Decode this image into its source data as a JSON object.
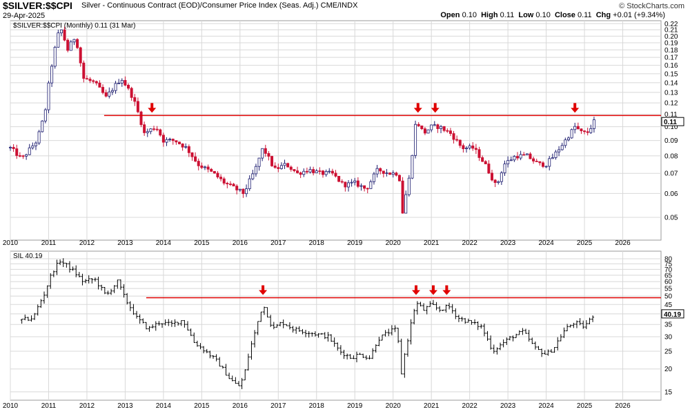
{
  "header": {
    "ticker": "$SILVER:$$CPI",
    "description": "Silver - Continuous Contract (EOD)/Consumer Price Index (Seas. Adj.) CME/INDX",
    "date": "29-Apr-2025",
    "ohlc": {
      "open_label": "Open",
      "open": "0.10",
      "high_label": "High",
      "high": "0.11",
      "low_label": "Low",
      "low": "0.10",
      "close_label": "Close",
      "close": "0.11",
      "chg_label": "Chg",
      "chg": "+0.01 (+9.34%)"
    },
    "brand": "© StockCharts.com"
  },
  "colors": {
    "up": "#1a1a6e",
    "down": "#cc1133",
    "resistance": "#e00000",
    "arrow": "#e00000",
    "grid": "#d8d8d8",
    "sil": "#000000"
  },
  "chart_data": [
    {
      "type": "candlestick",
      "panel_label": "$SILVER:$$CPI (Monthly) 0.11 (31 Mar)",
      "scale": "log",
      "ylim": [
        0.042,
        0.225
      ],
      "yticks": [
        0.05,
        0.06,
        0.07,
        0.08,
        0.09,
        0.1,
        0.11,
        0.12,
        0.13,
        0.14,
        0.15,
        0.16,
        0.17,
        0.18,
        0.19,
        0.2,
        0.21,
        0.22
      ],
      "ytick_labels": [
        "0.05",
        "0.06",
        "0.07",
        "0.08",
        "0.09",
        "0.10",
        "0.11",
        "0.12",
        "0.13",
        "0.14",
        "0.15",
        "0.16",
        "0.17",
        "0.18",
        "0.19",
        "0.20",
        "0.21",
        "0.22"
      ],
      "xlim": [
        2010.0,
        2027.0
      ],
      "xticks": [
        2010,
        2011,
        2012,
        2013,
        2014,
        2015,
        2016,
        2017,
        2018,
        2019,
        2020,
        2021,
        2022,
        2023,
        2024,
        2025,
        2026
      ],
      "xtick_labels": [
        "2010",
        "2011",
        "2012",
        "2013",
        "2014",
        "2015",
        "2016",
        "2017",
        "2018",
        "2019",
        "2020",
        "2021",
        "2022",
        "2023",
        "2024",
        "2025",
        "2026"
      ],
      "last_value_label": "0.11",
      "resistance": {
        "y": 0.109,
        "x_start": 2012.45,
        "x_end": 2027.0
      },
      "arrows": [
        2013.7,
        2020.65,
        2021.1,
        2024.75
      ],
      "anchors": [
        [
          2010.0,
          0.085
        ],
        [
          2010.3,
          0.078
        ],
        [
          2010.7,
          0.09
        ],
        [
          2010.9,
          0.11
        ],
        [
          2011.1,
          0.165
        ],
        [
          2011.3,
          0.215
        ],
        [
          2011.5,
          0.18
        ],
        [
          2011.7,
          0.2
        ],
        [
          2011.9,
          0.145
        ],
        [
          2012.2,
          0.14
        ],
        [
          2012.5,
          0.125
        ],
        [
          2012.9,
          0.145
        ],
        [
          2013.2,
          0.125
        ],
        [
          2013.5,
          0.095
        ],
        [
          2013.8,
          0.1
        ],
        [
          2014.0,
          0.09
        ],
        [
          2014.3,
          0.09
        ],
        [
          2014.6,
          0.085
        ],
        [
          2014.9,
          0.075
        ],
        [
          2015.3,
          0.07
        ],
        [
          2015.6,
          0.065
        ],
        [
          2015.9,
          0.062
        ],
        [
          2016.1,
          0.06
        ],
        [
          2016.4,
          0.072
        ],
        [
          2016.6,
          0.085
        ],
        [
          2016.9,
          0.072
        ],
        [
          2017.2,
          0.075
        ],
        [
          2017.5,
          0.07
        ],
        [
          2017.8,
          0.072
        ],
        [
          2018.1,
          0.07
        ],
        [
          2018.4,
          0.07
        ],
        [
          2018.7,
          0.064
        ],
        [
          2019.0,
          0.065
        ],
        [
          2019.3,
          0.062
        ],
        [
          2019.6,
          0.072
        ],
        [
          2019.9,
          0.07
        ],
        [
          2020.15,
          0.07
        ],
        [
          2020.25,
          0.052
        ],
        [
          2020.45,
          0.07
        ],
        [
          2020.6,
          0.105
        ],
        [
          2020.8,
          0.095
        ],
        [
          2021.0,
          0.1
        ],
        [
          2021.2,
          0.1
        ],
        [
          2021.5,
          0.095
        ],
        [
          2021.8,
          0.085
        ],
        [
          2022.1,
          0.085
        ],
        [
          2022.4,
          0.075
        ],
        [
          2022.7,
          0.063
        ],
        [
          2022.9,
          0.075
        ],
        [
          2023.2,
          0.08
        ],
        [
          2023.5,
          0.08
        ],
        [
          2023.8,
          0.075
        ],
        [
          2024.0,
          0.075
        ],
        [
          2024.2,
          0.08
        ],
        [
          2024.5,
          0.09
        ],
        [
          2024.75,
          0.1
        ],
        [
          2024.95,
          0.095
        ],
        [
          2025.1,
          0.096
        ],
        [
          2025.25,
          0.104
        ]
      ]
    },
    {
      "type": "ohlc",
      "panel_label": "SIL 40.19",
      "scale": "log",
      "ylim": [
        13.5,
        88
      ],
      "yticks": [
        15,
        20,
        25,
        30,
        35,
        40,
        45,
        50,
        55,
        60,
        65,
        70,
        75,
        80
      ],
      "ytick_labels": [
        "15",
        "20",
        "25",
        "30",
        "35",
        "40",
        "45",
        "50",
        "55",
        "60",
        "65",
        "70",
        "75",
        "80"
      ],
      "xlim": [
        2010.0,
        2027.0
      ],
      "xticks": [
        2010,
        2011,
        2012,
        2013,
        2014,
        2015,
        2016,
        2017,
        2018,
        2019,
        2020,
        2021,
        2022,
        2023,
        2024,
        2025,
        2026
      ],
      "xtick_labels": [
        "2010",
        "2011",
        "2012",
        "2013",
        "2014",
        "2015",
        "2016",
        "2017",
        "2018",
        "2019",
        "2020",
        "2021",
        "2022",
        "2023",
        "2024",
        "2025",
        "2026"
      ],
      "last_value_label": "40.19",
      "resistance": {
        "y": 49,
        "x_start": 2013.55,
        "x_end": 2027.0
      },
      "arrows": [
        2016.6,
        2020.6,
        2021.05,
        2021.4
      ],
      "anchors": [
        [
          2010.3,
          37
        ],
        [
          2010.6,
          38
        ],
        [
          2010.9,
          52
        ],
        [
          2011.1,
          68
        ],
        [
          2011.3,
          78
        ],
        [
          2011.6,
          70
        ],
        [
          2011.9,
          60
        ],
        [
          2012.2,
          62
        ],
        [
          2012.5,
          50
        ],
        [
          2012.8,
          60
        ],
        [
          2013.0,
          48
        ],
        [
          2013.3,
          38
        ],
        [
          2013.6,
          33
        ],
        [
          2013.9,
          36
        ],
        [
          2014.2,
          35
        ],
        [
          2014.5,
          37
        ],
        [
          2014.8,
          28
        ],
        [
          2015.1,
          25
        ],
        [
          2015.4,
          22
        ],
        [
          2015.7,
          18
        ],
        [
          2015.95,
          16
        ],
        [
          2016.1,
          18
        ],
        [
          2016.4,
          32
        ],
        [
          2016.6,
          45
        ],
        [
          2016.85,
          33
        ],
        [
          2017.1,
          36
        ],
        [
          2017.4,
          33
        ],
        [
          2017.7,
          32
        ],
        [
          2018.0,
          31
        ],
        [
          2018.3,
          30
        ],
        [
          2018.6,
          25
        ],
        [
          2018.9,
          23
        ],
        [
          2019.1,
          24
        ],
        [
          2019.4,
          23
        ],
        [
          2019.6,
          29
        ],
        [
          2019.9,
          32
        ],
        [
          2020.1,
          33
        ],
        [
          2020.2,
          18
        ],
        [
          2020.4,
          30
        ],
        [
          2020.6,
          46
        ],
        [
          2020.8,
          42
        ],
        [
          2021.0,
          45
        ],
        [
          2021.2,
          42
        ],
        [
          2021.45,
          44
        ],
        [
          2021.7,
          38
        ],
        [
          2022.0,
          36
        ],
        [
          2022.3,
          34
        ],
        [
          2022.6,
          25
        ],
        [
          2022.9,
          28
        ],
        [
          2023.1,
          30
        ],
        [
          2023.4,
          32
        ],
        [
          2023.7,
          26
        ],
        [
          2024.0,
          24
        ],
        [
          2024.2,
          26
        ],
        [
          2024.5,
          33
        ],
        [
          2024.75,
          36
        ],
        [
          2024.95,
          34
        ],
        [
          2025.1,
          36
        ],
        [
          2025.25,
          40
        ]
      ]
    }
  ]
}
